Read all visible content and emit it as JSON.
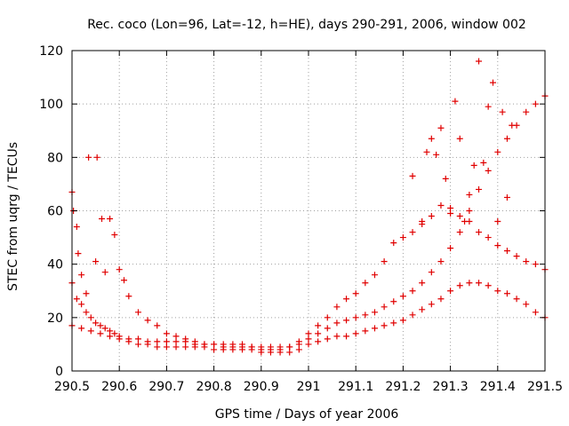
{
  "chart_data": {
    "type": "scatter",
    "title": "Rec. coco (Lon=96, Lat=-12, h=HE), days 290-291, 2006, window 002",
    "xlabel": "GPS time / Days of year 2006",
    "ylabel": "STEC from uqrg / TECUs",
    "xlim": [
      290.5,
      291.5
    ],
    "ylim": [
      0,
      120
    ],
    "xticks": [
      290.5,
      290.6,
      290.7,
      290.8,
      290.9,
      291.0,
      291.1,
      291.2,
      291.3,
      291.4,
      291.5
    ],
    "xtick_labels": [
      "290.5",
      "290.6",
      "290.7",
      "290.8",
      "290.9",
      "291",
      "291.1",
      "291.2",
      "291.3",
      "291.4",
      "291.5"
    ],
    "yticks": [
      0,
      20,
      40,
      60,
      80,
      100,
      120
    ],
    "ytick_labels": [
      "0",
      "20",
      "40",
      "60",
      "80",
      "100",
      "120"
    ],
    "grid": true,
    "marker": "+",
    "color": "#e00000",
    "series": [
      {
        "x": [
          290.5,
          290.503,
          290.51,
          290.513,
          290.52,
          290.53,
          290.535,
          290.55,
          290.553,
          290.563,
          290.57,
          290.58,
          290.59,
          290.6,
          290.61,
          290.62,
          290.64,
          290.66,
          290.68,
          290.7,
          290.72,
          290.74,
          290.76,
          290.78,
          290.8,
          290.82,
          290.84,
          290.86,
          290.88,
          290.9,
          290.92,
          290.94,
          290.96,
          290.98,
          291.0,
          291.02,
          291.04,
          291.06,
          291.08,
          291.1,
          291.12,
          291.14,
          291.16,
          291.18,
          291.2,
          291.22,
          291.24,
          291.26,
          291.28,
          291.3,
          291.32,
          291.34,
          291.36,
          291.38,
          291.4,
          291.42,
          291.44,
          291.46,
          291.48,
          291.5
        ],
        "y": [
          67,
          60,
          54,
          44,
          36,
          29,
          80,
          41,
          80,
          57,
          37,
          57,
          51,
          38,
          34,
          28,
          22,
          19,
          17,
          14,
          13,
          12,
          11,
          10,
          10,
          9,
          9,
          9,
          9,
          8,
          8,
          8,
          9,
          11,
          14,
          17,
          20,
          24,
          27,
          29,
          33,
          36,
          41,
          48,
          50,
          52,
          55,
          58,
          62,
          61,
          58,
          56,
          52,
          50,
          47,
          45,
          43,
          41,
          40,
          38
        ]
      },
      {
        "x": [
          290.5,
          290.51,
          290.52,
          290.53,
          290.54,
          290.55,
          290.56,
          290.57,
          290.58,
          290.59,
          290.6,
          290.62,
          290.64,
          290.66,
          290.68,
          290.7,
          290.72,
          290.74,
          290.76,
          290.78,
          290.8,
          290.82,
          290.84,
          290.86,
          290.88,
          290.9,
          290.92,
          290.94,
          290.96,
          290.98,
          291.0,
          291.02,
          291.04,
          291.06,
          291.08,
          291.1,
          291.12,
          291.14,
          291.16,
          291.18,
          291.2,
          291.22,
          291.24,
          291.26,
          291.28,
          291.3,
          291.32,
          291.34,
          291.36,
          291.38,
          291.4,
          291.42,
          291.44,
          291.46,
          291.48,
          291.5
        ],
        "y": [
          33,
          27,
          25,
          22,
          20,
          18,
          17,
          16,
          15,
          14,
          13,
          12,
          12,
          11,
          11,
          11,
          11,
          11,
          10,
          10,
          10,
          10,
          10,
          10,
          9,
          9,
          9,
          9,
          9,
          10,
          12,
          14,
          16,
          18,
          19,
          20,
          21,
          22,
          24,
          26,
          28,
          30,
          33,
          37,
          41,
          46,
          52,
          60,
          68,
          75,
          82,
          87,
          92,
          97,
          100,
          103
        ]
      },
      {
        "x": [
          290.5,
          290.52,
          290.54,
          290.56,
          290.58,
          290.6,
          290.62,
          290.64,
          290.66,
          290.68,
          290.7,
          290.72,
          290.74,
          290.76,
          290.78,
          290.8,
          290.82,
          290.84,
          290.86,
          290.88,
          290.9,
          290.92,
          290.94,
          290.96,
          290.98,
          291.0,
          291.02,
          291.04,
          291.06,
          291.08,
          291.1,
          291.12,
          291.14,
          291.16,
          291.18,
          291.2,
          291.22,
          291.24,
          291.26,
          291.28,
          291.3,
          291.32,
          291.34,
          291.36,
          291.38,
          291.4,
          291.42,
          291.44,
          291.46,
          291.48,
          291.5
        ],
        "y": [
          17,
          16,
          15,
          14,
          13,
          12,
          11,
          10,
          10,
          9,
          9,
          9,
          9,
          9,
          9,
          8,
          8,
          8,
          8,
          8,
          7,
          7,
          7,
          7,
          8,
          10,
          11,
          12,
          13,
          13,
          14,
          15,
          16,
          17,
          18,
          19,
          21,
          23,
          25,
          27,
          30,
          32,
          33,
          33,
          32,
          30,
          29,
          27,
          25,
          22,
          20
        ]
      },
      {
        "x": [
          291.22,
          291.24,
          291.25,
          291.26,
          291.27,
          291.28,
          291.29,
          291.3,
          291.31,
          291.32,
          291.33,
          291.34,
          291.35,
          291.36,
          291.37,
          291.38,
          291.39,
          291.4,
          291.41,
          291.42,
          291.43
        ],
        "y": [
          73,
          56,
          82,
          87,
          81,
          91,
          72,
          59,
          101,
          87,
          56,
          66,
          77,
          116,
          78,
          99,
          108,
          56,
          97,
          65,
          92
        ]
      }
    ]
  }
}
